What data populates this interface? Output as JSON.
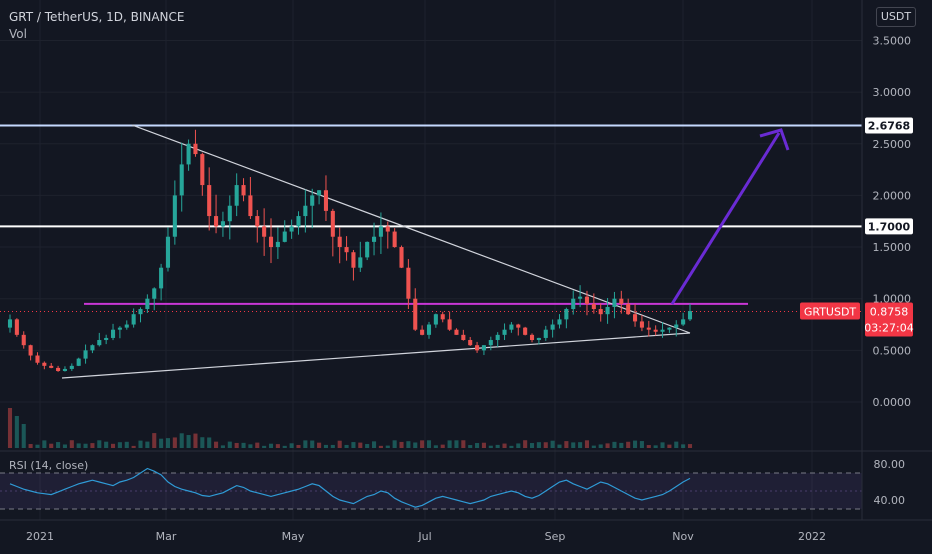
{
  "header": {
    "title": "GRT / TetherUS, 1D, BINANCE",
    "volume_label": "Vol",
    "currency_button": "USDT"
  },
  "chart_data": {
    "type": "candlestick",
    "symbol": "GRTUSDT",
    "price_axis_ticks": [
      "3.5000",
      "3.0000",
      "2.5000",
      "2.0000",
      "1.5000",
      "1.0000",
      "0.5000",
      "0.0000"
    ],
    "price_tick_values": [
      3.5,
      3.0,
      2.5,
      2.0,
      1.5,
      1.0,
      0.5,
      0.0
    ],
    "time_axis_ticks": [
      "2021",
      "Mar",
      "May",
      "Jul",
      "Sep",
      "Nov",
      "2022"
    ],
    "horizontal_levels": [
      {
        "label": "2.6768",
        "value": 2.6768,
        "color": "#c5d9ff"
      },
      {
        "label": "1.7000",
        "value": 1.7,
        "color": "#ffffff"
      }
    ],
    "resistance_line": {
      "value": 0.95,
      "color": "#c837d6"
    },
    "last_price": {
      "label": "0.8758",
      "value": 0.8758,
      "symbol_badge": "GRTUSDT",
      "countdown": "03:27:04",
      "color": "#f23645"
    },
    "close_series": [
      0.8,
      0.65,
      0.55,
      0.45,
      0.38,
      0.35,
      0.33,
      0.3,
      0.32,
      0.35,
      0.42,
      0.5,
      0.55,
      0.6,
      0.62,
      0.7,
      0.72,
      0.75,
      0.85,
      0.9,
      1.0,
      1.1,
      1.3,
      1.6,
      2.0,
      2.3,
      2.5,
      2.4,
      2.1,
      1.8,
      1.7,
      1.75,
      1.9,
      2.1,
      2.0,
      1.8,
      1.7,
      1.6,
      1.5,
      1.55,
      1.65,
      1.7,
      1.8,
      1.9,
      2.0,
      2.05,
      1.85,
      1.6,
      1.5,
      1.45,
      1.3,
      1.4,
      1.55,
      1.6,
      1.7,
      1.65,
      1.5,
      1.3,
      1.0,
      0.7,
      0.65,
      0.75,
      0.85,
      0.8,
      0.7,
      0.65,
      0.6,
      0.55,
      0.5,
      0.55,
      0.6,
      0.65,
      0.7,
      0.75,
      0.72,
      0.65,
      0.6,
      0.62,
      0.7,
      0.75,
      0.8,
      0.9,
      1.0,
      1.02,
      0.95,
      0.9,
      0.85,
      0.92,
      1.0,
      0.95,
      0.85,
      0.78,
      0.72,
      0.7,
      0.68,
      0.7,
      0.72,
      0.75,
      0.8,
      0.88
    ],
    "rsi": {
      "label": "RSI (14, close)",
      "axis_ticks": [
        "80.00",
        "40.00"
      ],
      "tick_values": [
        80,
        40
      ],
      "band": [
        70,
        30
      ],
      "values": [
        58,
        55,
        52,
        50,
        48,
        47,
        46,
        49,
        52,
        55,
        58,
        60,
        62,
        60,
        58,
        56,
        60,
        62,
        65,
        70,
        75,
        72,
        68,
        60,
        55,
        52,
        50,
        48,
        45,
        44,
        46,
        48,
        52,
        56,
        54,
        50,
        48,
        46,
        44,
        46,
        48,
        50,
        52,
        55,
        58,
        56,
        50,
        44,
        40,
        38,
        36,
        40,
        44,
        46,
        50,
        48,
        42,
        38,
        35,
        32,
        34,
        38,
        42,
        44,
        42,
        40,
        38,
        36,
        38,
        40,
        44,
        46,
        48,
        50,
        48,
        44,
        42,
        45,
        50,
        55,
        60,
        62,
        58,
        55,
        52,
        56,
        60,
        58,
        54,
        50,
        46,
        42,
        40,
        42,
        44,
        46,
        50,
        55,
        60,
        64
      ]
    }
  }
}
